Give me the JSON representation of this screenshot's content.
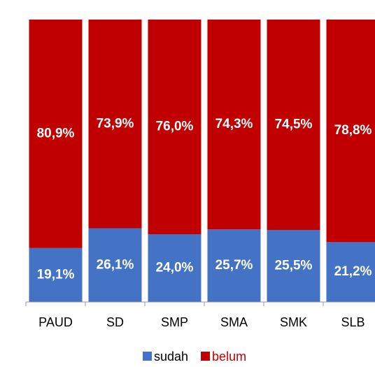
{
  "chart_data": {
    "type": "stacked_bar",
    "categories": [
      "PAUD",
      "SD",
      "SMP",
      "SMA",
      "SMK",
      "SLB"
    ],
    "ylim": [
      0,
      100
    ],
    "series": [
      {
        "name": "sudah",
        "color": "#4472c4",
        "values": [
          19.1,
          26.1,
          24.0,
          25.7,
          25.5,
          21.2
        ],
        "value_labels": [
          "19,1%",
          "26,1%",
          "24,0%",
          "25,7%",
          "25,5%",
          "21,2%"
        ]
      },
      {
        "name": "belum",
        "color": "#c00000",
        "values": [
          80.9,
          73.9,
          76.0,
          74.3,
          74.5,
          78.8
        ],
        "value_labels": [
          "80,9%",
          "73,9%",
          "76,0%",
          "74,3%",
          "74,5%",
          "78,8%"
        ]
      }
    ],
    "legend": "bottom"
  }
}
